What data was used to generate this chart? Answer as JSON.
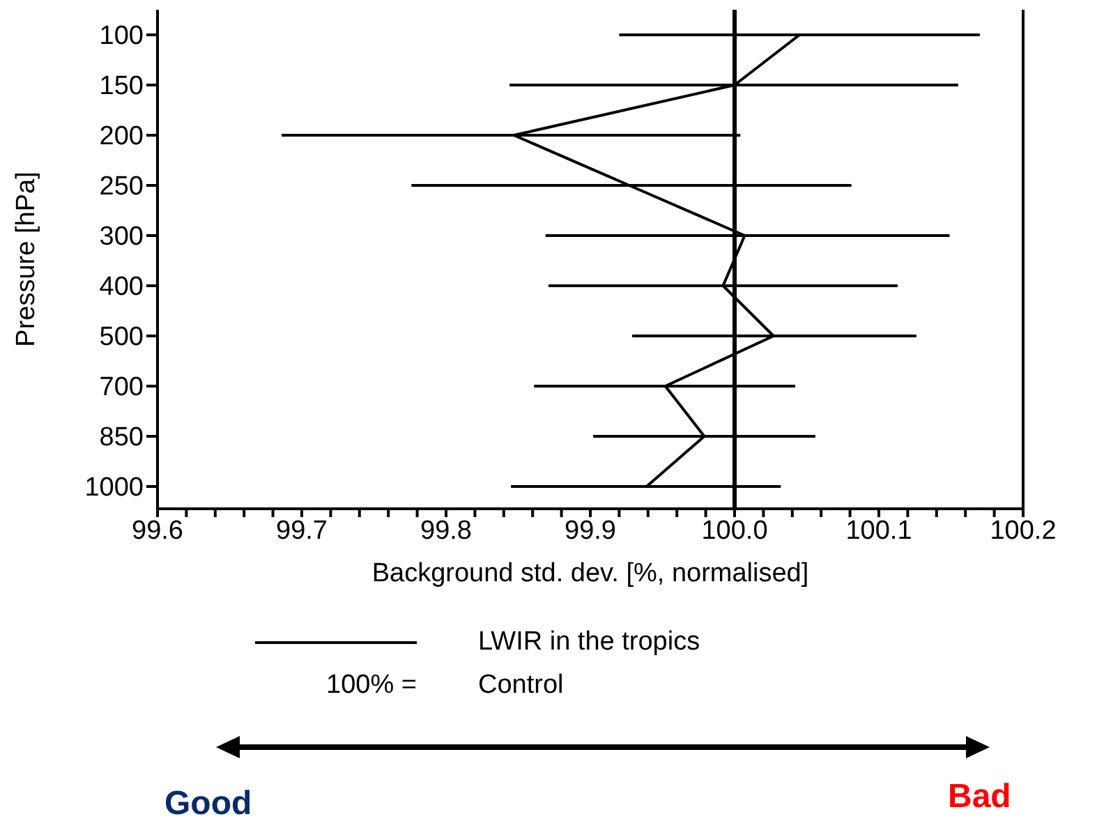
{
  "chart_data": {
    "type": "line",
    "orientation": "horizontal",
    "xlabel": "Background std. dev. [%, normalised]",
    "ylabel": "Pressure [hPa]",
    "categories": [
      "100",
      "150",
      "200",
      "250",
      "300",
      "400",
      "500",
      "700",
      "850",
      "1000"
    ],
    "series": [
      {
        "name": "LWIR in the tropics",
        "color": "#000000",
        "values": [
          100.045,
          100.0,
          99.847,
          99.927,
          100.007,
          99.992,
          100.027,
          99.952,
          99.979,
          99.939
        ],
        "errors": [
          [
            99.92,
            100.17
          ],
          [
            99.844,
            100.155
          ],
          [
            99.686,
            100.004
          ],
          [
            99.776,
            100.081
          ],
          [
            99.869,
            100.149
          ],
          [
            99.871,
            100.113
          ],
          [
            99.929,
            100.126
          ],
          [
            99.861,
            100.042
          ],
          [
            99.902,
            100.056
          ],
          [
            99.845,
            100.032
          ]
        ]
      }
    ],
    "xlim": [
      99.6,
      100.2
    ],
    "xticks": [
      99.6,
      99.7,
      99.8,
      99.9,
      {
        "value": 100,
        "label": "100.0"
      },
      100.1,
      100.2,
      {
        "value": 99.62,
        "label": null
      },
      {
        "value": 99.64,
        "label": null
      },
      {
        "value": 99.66,
        "label": null
      },
      {
        "value": 99.68,
        "label": null
      },
      {
        "value": 99.72,
        "label": null
      },
      {
        "value": 99.74,
        "label": null
      },
      {
        "value": 99.76,
        "label": null
      },
      {
        "value": 99.78,
        "label": null
      },
      {
        "value": 99.82,
        "label": null
      },
      {
        "value": 99.84,
        "label": null
      },
      {
        "value": 99.86,
        "label": null
      },
      {
        "value": 99.88,
        "label": null
      },
      {
        "value": 99.92,
        "label": null
      },
      {
        "value": 99.94,
        "label": null
      },
      {
        "value": 99.96,
        "label": null
      },
      {
        "value": 99.98,
        "label": null
      },
      {
        "value": 100.02,
        "label": null
      },
      {
        "value": 100.04,
        "label": null
      },
      {
        "value": 100.06,
        "label": null
      },
      {
        "value": 100.08,
        "label": null
      },
      {
        "value": 100.12,
        "label": null
      },
      {
        "value": 100.14,
        "label": null
      },
      {
        "value": 100.16,
        "label": null
      },
      {
        "value": 100.18,
        "label": null
      }
    ],
    "ref_lines": [
      {
        "axis": "x",
        "value": 100,
        "color": "#000000"
      }
    ],
    "marker": "none",
    "line_style": "solid",
    "legend": "bottom",
    "grid": false,
    "annotations": [
      "100% =",
      "Control",
      "Good",
      "Bad"
    ]
  }
}
